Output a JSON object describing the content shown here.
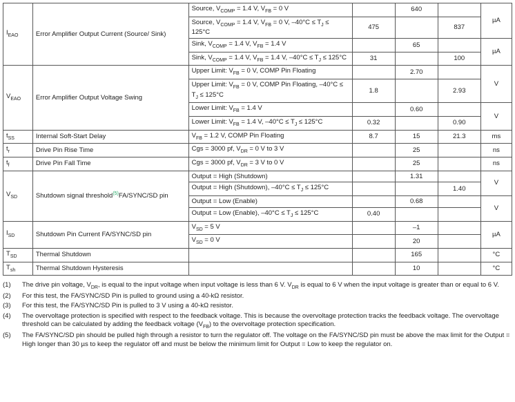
{
  "rows": [
    {
      "sym": "",
      "param": "",
      "cond": "Source, V<sub>COMP</sub> = 1.4 V, V<sub>FB</sub> = 0 V",
      "v1": "",
      "v2": "640",
      "v3": "",
      "unit": "",
      "symRowspan": 4,
      "symText": "I<sub>EAO</sub>",
      "paramRowspan": 4,
      "paramText": "Error Amplifier Output Current (Source/ Sink)",
      "unitRowspan": 2,
      "unitText": "µA"
    },
    {
      "cond": "Source, V<sub>COMP</sub> = 1.4 V, V<sub>FB</sub> = 0 V, –40°C ≤ T<sub>J</sub> ≤ 125°C",
      "v1": "475",
      "v2": "",
      "v3": "837"
    },
    {
      "cond": "Sink, V<sub>COMP</sub> = 1.4 V, V<sub>FB</sub> = 1.4 V",
      "v1": "",
      "v2": "65",
      "v3": "",
      "unitRowspan": 2,
      "unitText": "µA"
    },
    {
      "cond": "Sink, V<sub>COMP</sub> = 1.4 V, V<sub>FB</sub> = 1.4 V, –40°C ≤ T<sub>J</sub> ≤ 125°C",
      "v1": "31",
      "v2": "",
      "v3": "100"
    },
    {
      "symRowspan": 4,
      "symText": "V<sub>EAO</sub>",
      "paramRowspan": 4,
      "paramText": "Error Amplifier Output Voltage Swing",
      "cond": "Upper Limit: V<sub>FB</sub> = 0 V, COMP Pin Floating",
      "v1": "",
      "v2": "2.70",
      "v3": "",
      "unitRowspan": 2,
      "unitText": "V"
    },
    {
      "cond": "Upper Limit: V<sub>FB</sub> = 0 V, COMP Pin Floating, –40°C ≤ T<sub>J</sub> ≤ 125°C",
      "v1": "1.8",
      "v2": "",
      "v3": "2.93"
    },
    {
      "cond": "Lower Limit: V<sub>FB</sub> = 1.4 V",
      "v1": "",
      "v2": "0.60",
      "v3": "",
      "unitRowspan": 2,
      "unitText": "V"
    },
    {
      "cond": "Lower Limit: V<sub>FB</sub> = 1.4 V, –40°C ≤ T<sub>J</sub> ≤ 125°C",
      "v1": "0.32",
      "v2": "",
      "v3": "0.90"
    },
    {
      "symText": "t<sub>SS</sub>",
      "paramText": "Internal Soft-Start Delay",
      "cond": "V<sub>FB</sub> = 1.2 V, COMP Pin Floating",
      "v1": "8.7",
      "v2": "15",
      "v3": "21.3",
      "unitText": "ms"
    },
    {
      "symText": "t<sub>r</sub>",
      "paramText": "Drive Pin Rise Time",
      "cond": "Cgs = 3000 pf, V<sub>DR</sub> = 0 V to 3 V",
      "v1": "",
      "v2": "25",
      "v3": "",
      "unitText": "ns"
    },
    {
      "symText": "t<sub>f</sub>",
      "paramText": "Drive Pin Fall Time",
      "cond": "Cgs = 3000 pf, V<sub>DR</sub> = 3 V to 0 V",
      "v1": "",
      "v2": "25",
      "v3": "",
      "unitText": "ns"
    },
    {
      "symRowspan": 4,
      "symText": "V<sub>SD</sub>",
      "paramRowspan": 4,
      "paramText": "Shutdown signal threshold<sup class='supnote'>(5)</sup>FA/SYNC/SD pin",
      "cond": "Output = High (Shutdown)",
      "v1": "",
      "v2": "1.31",
      "v3": "",
      "unitRowspan": 2,
      "unitText": "V"
    },
    {
      "cond": "Output = High (Shutdown), –40°C ≤ T<sub>J</sub> ≤ 125°C",
      "v1": "",
      "v2": "",
      "v3": "1.40"
    },
    {
      "cond": "Output = Low (Enable)",
      "v1": "",
      "v2": "0.68",
      "v3": "",
      "unitRowspan": 2,
      "unitText": "V"
    },
    {
      "cond": "Output = Low (Enable), –40°C ≤ T<sub>J</sub> ≤ 125°C",
      "v1": "0.40",
      "v2": "",
      "v3": ""
    },
    {
      "symRowspan": 2,
      "symText": "I<sub>SD</sub>",
      "paramRowspan": 2,
      "paramText": "Shutdown Pin Current FA/SYNC/SD pin",
      "cond": "V<sub>SD</sub> = 5 V",
      "v1": "",
      "v2": "–1",
      "v3": "",
      "unitRowspan": 2,
      "unitText": "µA"
    },
    {
      "cond": "V<sub>SD</sub> = 0 V",
      "v1": "",
      "v2": "20",
      "v3": ""
    },
    {
      "symText": "T<sub>SD</sub>",
      "paramText": "Thermal Shutdown",
      "cond": "",
      "v1": "",
      "v2": "165",
      "v3": "",
      "unitText": "°C"
    },
    {
      "symText": "T<sub>sh</sub>",
      "paramText": "Thermal Shutdown Hysteresis",
      "cond": "",
      "v1": "",
      "v2": "10",
      "v3": "",
      "unitText": "°C"
    }
  ],
  "notes": [
    {
      "n": "(1)",
      "t": "The drive pin voltage, V<sub>DR</sub>, is equal to the input voltage when input voltage is less than 6 V. V<sub>DR</sub> is equal to 6 V when the input voltage is greater than or equal to 6 V."
    },
    {
      "n": "(2)",
      "t": "For this test, the FA/SYNC/SD Pin is pulled to ground using a 40-kΩ resistor."
    },
    {
      "n": "(3)",
      "t": "For this test, the FA/SYNC/SD Pin is pulled to 3 V using a 40-kΩ resistor."
    },
    {
      "n": "(4)",
      "t": "The overvoltage protection is specified with respect to the feedback voltage. This is because the overvoltage protection tracks the feedback voltage. The overvoltage threshold can be calculated by adding the feedback voltage (V<sub>FB</sub>) to the overvoltage protection specification."
    },
    {
      "n": "(5)",
      "t": "The FA/SYNC/SD pin should be pulled high through a resistor to turn the regulator off. The voltage on the FA/SYNC/SD pin must be above the max limit for the Output = High longer than 30 µs to keep the regulator off and must be below the minimum limit for Output = Low to keep the regulator on."
    }
  ],
  "colwidths": {
    "sym": 38,
    "param": 200,
    "cond": 210,
    "v1": 55,
    "v2": 55,
    "v3": 55,
    "unit": 40
  },
  "colors": {
    "border": "#555",
    "text": "#222",
    "supnote": "#2a6"
  },
  "font": {
    "family": "Arial",
    "bodySize": 10,
    "cellSize": 9.5,
    "subSize": 7
  }
}
